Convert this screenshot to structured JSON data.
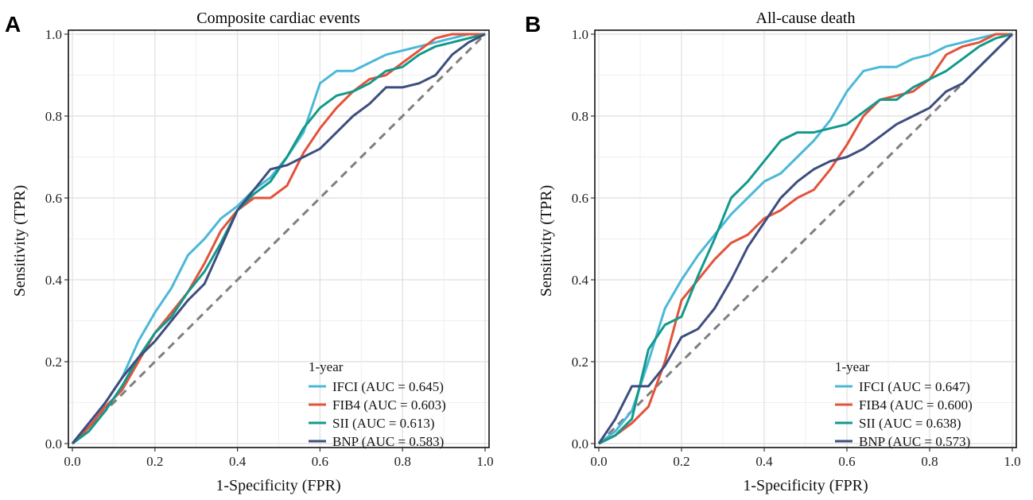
{
  "chart_data": [
    {
      "panel_label": "A",
      "type": "line",
      "title": "Composite cardiac events",
      "xlabel": "1-Specificity (FPR)",
      "ylabel": "Sensitivity (TPR)",
      "xlim": [
        0,
        1
      ],
      "ylim": [
        0,
        1
      ],
      "xticks": [
        "0.0",
        "0.2",
        "0.4",
        "0.6",
        "0.8",
        "1.0"
      ],
      "yticks": [
        "0.0",
        "0.2",
        "0.4",
        "0.6",
        "0.8",
        "1.0"
      ],
      "grid": true,
      "legend_position": "bottom-right",
      "legend_title": "1-year",
      "reference_line": "diagonal",
      "series": [
        {
          "name": "IFCI (AUC = 0.645)",
          "color": "#4bb8d8",
          "x": [
            0,
            0.04,
            0.08,
            0.12,
            0.16,
            0.2,
            0.24,
            0.28,
            0.32,
            0.36,
            0.4,
            0.44,
            0.48,
            0.52,
            0.56,
            0.6,
            0.64,
            0.68,
            0.72,
            0.76,
            0.8,
            0.84,
            0.88,
            0.92,
            0.96,
            1
          ],
          "y": [
            0,
            0.05,
            0.1,
            0.16,
            0.25,
            0.32,
            0.38,
            0.46,
            0.5,
            0.55,
            0.58,
            0.62,
            0.65,
            0.7,
            0.76,
            0.88,
            0.91,
            0.91,
            0.93,
            0.95,
            0.96,
            0.97,
            0.98,
            0.99,
            1,
            1
          ]
        },
        {
          "name": "FIB4 (AUC = 0.603)",
          "color": "#e2533b",
          "x": [
            0,
            0.04,
            0.08,
            0.12,
            0.16,
            0.2,
            0.24,
            0.28,
            0.32,
            0.36,
            0.4,
            0.44,
            0.48,
            0.52,
            0.56,
            0.6,
            0.64,
            0.68,
            0.72,
            0.76,
            0.8,
            0.84,
            0.88,
            0.92,
            0.96,
            1
          ],
          "y": [
            0,
            0.04,
            0.09,
            0.13,
            0.2,
            0.27,
            0.32,
            0.37,
            0.44,
            0.52,
            0.57,
            0.6,
            0.6,
            0.63,
            0.71,
            0.77,
            0.82,
            0.86,
            0.89,
            0.9,
            0.93,
            0.96,
            0.99,
            1,
            1,
            1
          ]
        },
        {
          "name": "SII (AUC = 0.613)",
          "color": "#13998b",
          "x": [
            0,
            0.04,
            0.08,
            0.12,
            0.16,
            0.2,
            0.24,
            0.28,
            0.32,
            0.36,
            0.4,
            0.44,
            0.48,
            0.52,
            0.56,
            0.6,
            0.64,
            0.68,
            0.72,
            0.76,
            0.8,
            0.84,
            0.88,
            0.92,
            0.96,
            1
          ],
          "y": [
            0,
            0.03,
            0.08,
            0.14,
            0.21,
            0.27,
            0.31,
            0.37,
            0.42,
            0.49,
            0.57,
            0.61,
            0.64,
            0.7,
            0.77,
            0.82,
            0.85,
            0.86,
            0.88,
            0.91,
            0.92,
            0.95,
            0.97,
            0.98,
            0.99,
            1
          ]
        },
        {
          "name": "BNP (AUC = 0.583)",
          "color": "#3d4e7e",
          "x": [
            0,
            0.04,
            0.08,
            0.12,
            0.16,
            0.2,
            0.24,
            0.28,
            0.32,
            0.36,
            0.4,
            0.44,
            0.48,
            0.52,
            0.56,
            0.6,
            0.64,
            0.68,
            0.72,
            0.76,
            0.8,
            0.84,
            0.88,
            0.92,
            0.96,
            1
          ],
          "y": [
            0,
            0.05,
            0.1,
            0.16,
            0.21,
            0.25,
            0.3,
            0.35,
            0.39,
            0.48,
            0.57,
            0.62,
            0.67,
            0.68,
            0.7,
            0.72,
            0.76,
            0.8,
            0.83,
            0.87,
            0.87,
            0.88,
            0.9,
            0.95,
            0.98,
            1
          ]
        }
      ]
    },
    {
      "panel_label": "B",
      "type": "line",
      "title": "All-cause death",
      "xlabel": "1-Specificity (FPR)",
      "ylabel": "Sensitivity (TPR)",
      "xlim": [
        0,
        1
      ],
      "ylim": [
        0,
        1
      ],
      "xticks": [
        "0.0",
        "0.2",
        "0.4",
        "0.6",
        "0.8",
        "1.0"
      ],
      "yticks": [
        "0.0",
        "0.2",
        "0.4",
        "0.6",
        "0.8",
        "1.0"
      ],
      "grid": true,
      "legend_position": "bottom-right",
      "legend_title": "1-year",
      "reference_line": "diagonal",
      "series": [
        {
          "name": "IFCI (AUC = 0.647)",
          "color": "#4bb8d8",
          "x": [
            0,
            0.04,
            0.08,
            0.12,
            0.16,
            0.2,
            0.24,
            0.28,
            0.32,
            0.36,
            0.4,
            0.44,
            0.48,
            0.52,
            0.56,
            0.6,
            0.64,
            0.68,
            0.72,
            0.76,
            0.8,
            0.84,
            0.88,
            0.92,
            0.96,
            1
          ],
          "y": [
            0,
            0.03,
            0.08,
            0.2,
            0.33,
            0.4,
            0.46,
            0.51,
            0.56,
            0.6,
            0.64,
            0.66,
            0.7,
            0.74,
            0.79,
            0.86,
            0.91,
            0.92,
            0.92,
            0.94,
            0.95,
            0.97,
            0.98,
            0.99,
            1,
            1
          ]
        },
        {
          "name": "FIB4 (AUC = 0.600)",
          "color": "#e2533b",
          "x": [
            0,
            0.04,
            0.08,
            0.12,
            0.16,
            0.2,
            0.24,
            0.28,
            0.32,
            0.36,
            0.4,
            0.44,
            0.48,
            0.52,
            0.56,
            0.6,
            0.64,
            0.68,
            0.72,
            0.76,
            0.8,
            0.84,
            0.88,
            0.92,
            0.96,
            1
          ],
          "y": [
            0,
            0.02,
            0.05,
            0.09,
            0.2,
            0.35,
            0.4,
            0.45,
            0.49,
            0.51,
            0.55,
            0.57,
            0.6,
            0.62,
            0.67,
            0.73,
            0.8,
            0.84,
            0.85,
            0.86,
            0.89,
            0.95,
            0.97,
            0.98,
            1,
            1
          ]
        },
        {
          "name": "SII (AUC = 0.638)",
          "color": "#13998b",
          "x": [
            0,
            0.04,
            0.08,
            0.12,
            0.16,
            0.2,
            0.24,
            0.28,
            0.32,
            0.36,
            0.4,
            0.44,
            0.48,
            0.52,
            0.56,
            0.6,
            0.64,
            0.68,
            0.72,
            0.76,
            0.8,
            0.84,
            0.88,
            0.92,
            0.96,
            1
          ],
          "y": [
            0,
            0.02,
            0.06,
            0.23,
            0.29,
            0.31,
            0.41,
            0.5,
            0.6,
            0.64,
            0.69,
            0.74,
            0.76,
            0.76,
            0.77,
            0.78,
            0.81,
            0.84,
            0.84,
            0.87,
            0.89,
            0.91,
            0.94,
            0.97,
            0.99,
            1
          ]
        },
        {
          "name": "BNP (AUC = 0.573)",
          "color": "#3d4e7e",
          "x": [
            0,
            0.04,
            0.08,
            0.12,
            0.16,
            0.2,
            0.24,
            0.28,
            0.32,
            0.36,
            0.4,
            0.44,
            0.48,
            0.52,
            0.56,
            0.6,
            0.64,
            0.68,
            0.72,
            0.76,
            0.8,
            0.84,
            0.88,
            0.92,
            0.96,
            1
          ],
          "y": [
            0,
            0.06,
            0.14,
            0.14,
            0.19,
            0.26,
            0.28,
            0.33,
            0.4,
            0.48,
            0.54,
            0.6,
            0.64,
            0.67,
            0.69,
            0.7,
            0.72,
            0.75,
            0.78,
            0.8,
            0.82,
            0.86,
            0.88,
            0.92,
            0.96,
            1
          ]
        }
      ]
    }
  ]
}
